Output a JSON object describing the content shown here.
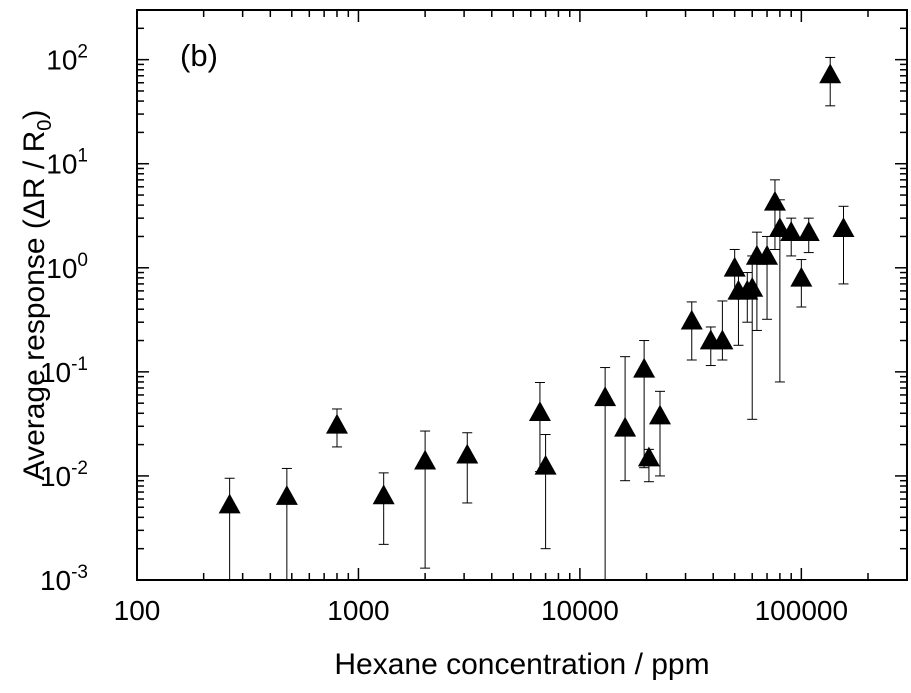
{
  "chart_data": {
    "type": "scatter",
    "panel_label": "(b)",
    "xlabel": "Hexane concentration / ppm",
    "ylabel": {
      "main": "Average response (",
      "delta": "Δ",
      "r1": "R / R",
      "sub": "0",
      "close": ")"
    },
    "x_scale": "log",
    "y_scale": "log",
    "xlim": [
      100,
      300000
    ],
    "ylim": [
      0.001,
      300
    ],
    "grid": false,
    "x_ticks": [
      {
        "value": 100,
        "label": "100"
      },
      {
        "value": 1000,
        "label": "1000"
      },
      {
        "value": 10000,
        "label": "10000"
      },
      {
        "value": 100000,
        "label": "100000"
      }
    ],
    "y_ticks": [
      {
        "value": 0.001,
        "base": "10",
        "exp": "-3"
      },
      {
        "value": 0.01,
        "base": "10",
        "exp": "-2"
      },
      {
        "value": 0.1,
        "base": "10",
        "exp": "-1"
      },
      {
        "value": 1,
        "base": "10",
        "exp": "0"
      },
      {
        "value": 10,
        "base": "10",
        "exp": "1"
      },
      {
        "value": 100,
        "base": "10",
        "exp": "2"
      }
    ],
    "marker": "triangle-up",
    "color": "#000000",
    "points": [
      {
        "x": 262,
        "y": 0.0053,
        "err_low": 0.0005,
        "err_high": 0.0095
      },
      {
        "x": 475,
        "y": 0.0064,
        "err_low": 0.0005,
        "err_high": 0.0118
      },
      {
        "x": 800,
        "y": 0.031,
        "err_low": 0.019,
        "err_high": 0.044
      },
      {
        "x": 1300,
        "y": 0.0065,
        "err_low": 0.0022,
        "err_high": 0.0107
      },
      {
        "x": 2000,
        "y": 0.014,
        "err_low": 0.0013,
        "err_high": 0.027
      },
      {
        "x": 3100,
        "y": 0.016,
        "err_low": 0.0055,
        "err_high": 0.026
      },
      {
        "x": 6600,
        "y": 0.041,
        "err_low": 0.011,
        "err_high": 0.079
      },
      {
        "x": 7000,
        "y": 0.0125,
        "err_low": 0.002,
        "err_high": 0.025
      },
      {
        "x": 13000,
        "y": 0.057,
        "err_low": 0.0005,
        "err_high": 0.11
      },
      {
        "x": 16000,
        "y": 0.029,
        "err_low": 0.009,
        "err_high": 0.14
      },
      {
        "x": 19500,
        "y": 0.107,
        "err_low": 0.012,
        "err_high": 0.2
      },
      {
        "x": 20500,
        "y": 0.015,
        "err_low": 0.0088,
        "err_high": 0.018
      },
      {
        "x": 23000,
        "y": 0.038,
        "err_low": 0.01,
        "err_high": 0.065
      },
      {
        "x": 32000,
        "y": 0.31,
        "err_low": 0.13,
        "err_high": 0.47
      },
      {
        "x": 39000,
        "y": 0.2,
        "err_low": 0.115,
        "err_high": 0.27
      },
      {
        "x": 44000,
        "y": 0.2,
        "err_low": 0.13,
        "err_high": 0.48
      },
      {
        "x": 50000,
        "y": 1.0,
        "err_low": 0.5,
        "err_high": 1.5
      },
      {
        "x": 52000,
        "y": 0.6,
        "err_low": 0.18,
        "err_high": 0.9
      },
      {
        "x": 57000,
        "y": 0.6,
        "err_low": 0.3,
        "err_high": 0.9
      },
      {
        "x": 60000,
        "y": 0.64,
        "err_low": 0.035,
        "err_high": 1.3
      },
      {
        "x": 63000,
        "y": 1.3,
        "err_low": 0.25,
        "err_high": 2.2
      },
      {
        "x": 70000,
        "y": 1.3,
        "err_low": 0.32,
        "err_high": 2.0
      },
      {
        "x": 76000,
        "y": 4.3,
        "err_low": 1.5,
        "err_high": 7.0
      },
      {
        "x": 80000,
        "y": 2.4,
        "err_low": 0.08,
        "err_high": 4.5
      },
      {
        "x": 90000,
        "y": 2.2,
        "err_low": 1.3,
        "err_high": 3.0
      },
      {
        "x": 100000,
        "y": 0.8,
        "err_low": 0.42,
        "err_high": 1.2
      },
      {
        "x": 108000,
        "y": 2.2,
        "err_low": 1.4,
        "err_high": 3.0
      },
      {
        "x": 135000,
        "y": 72,
        "err_low": 36,
        "err_high": 105
      },
      {
        "x": 155000,
        "y": 2.4,
        "err_low": 0.7,
        "err_high": 3.9
      }
    ]
  }
}
